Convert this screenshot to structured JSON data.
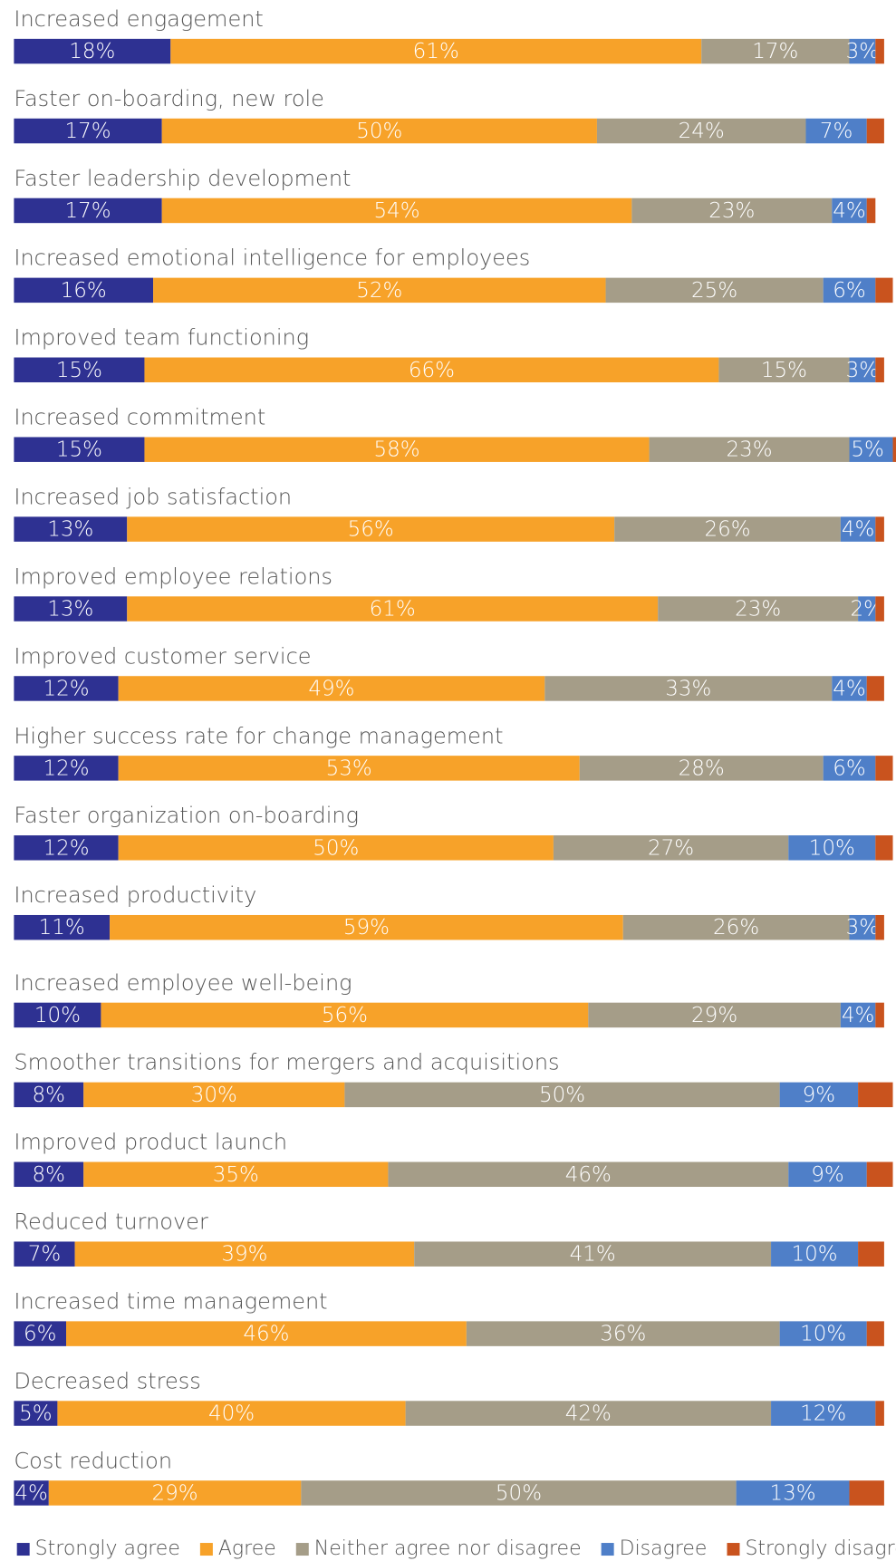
{
  "chart_data": {
    "type": "stacked_barh",
    "categories": [
      "Increased engagement",
      "Faster on-boarding, new role",
      "Faster leadership development",
      "Increased emotional intelligence for employees",
      "Improved team functioning",
      "Increased commitment",
      "Increased job satisfaction",
      "Improved employee relations",
      "Improved customer service",
      "Higher success rate for change management",
      "Faster organization on-boarding",
      "Increased productivity",
      "Increased employee well-being",
      "Smoother transitions for mergers and acquisitions",
      "Improved product launch",
      "Reduced turnover",
      "Increased time management",
      "Decreased stress",
      "Cost reduction"
    ],
    "series": [
      {
        "name": "Strongly agree",
        "color": "#2e3192",
        "values": [
          18,
          17,
          17,
          16,
          15,
          15,
          13,
          13,
          12,
          12,
          12,
          11,
          10,
          8,
          8,
          7,
          6,
          5,
          4
        ],
        "value_labels": [
          "18%",
          "17%",
          "17%",
          "16%",
          "15%",
          "15%",
          "13%",
          "13%",
          "12%",
          "12%",
          "12%",
          "11%",
          "10%",
          "8%",
          "8%",
          "7%",
          "6%",
          "5%",
          "4%"
        ]
      },
      {
        "name": "Agree",
        "color": "#f7a229",
        "values": [
          61,
          50,
          54,
          52,
          66,
          58,
          56,
          61,
          49,
          53,
          50,
          59,
          56,
          30,
          35,
          39,
          46,
          40,
          29
        ],
        "value_labels": [
          "61%",
          "50%",
          "54%",
          "52%",
          "66%",
          "58%",
          "56%",
          "61%",
          "49%",
          "53%",
          "50%",
          "59%",
          "56%",
          "30%",
          "35%",
          "39%",
          "46%",
          "40%",
          "29%"
        ]
      },
      {
        "name": "Neither agree nor disagree",
        "color": "#a59d88",
        "values": [
          17,
          24,
          23,
          25,
          15,
          23,
          26,
          23,
          33,
          28,
          27,
          26,
          29,
          50,
          46,
          41,
          36,
          42,
          50
        ],
        "value_labels": [
          "17%",
          "24%",
          "23%",
          "25%",
          "15%",
          "23%",
          "26%",
          "23%",
          "33%",
          "28%",
          "27%",
          "26%",
          "29%",
          "50%",
          "46%",
          "41%",
          "36%",
          "42%",
          "50%"
        ]
      },
      {
        "name": "Disagree",
        "color": "#4f7fc8",
        "values": [
          3,
          7,
          4,
          6,
          3,
          5,
          4,
          2,
          4,
          6,
          10,
          3,
          4,
          9,
          9,
          10,
          10,
          12,
          13
        ],
        "value_labels": [
          "3%",
          "7%",
          "4%",
          "6%",
          "3%",
          "5%",
          "4%",
          "2%",
          "4%",
          "6%",
          "10%",
          "3%",
          "4%",
          "9%",
          "9%",
          "10%",
          "10%",
          "12%",
          "13%"
        ]
      },
      {
        "name": "Strongly disagree",
        "color": "#c9531e",
        "values": [
          1,
          2,
          1,
          2,
          1,
          1,
          1,
          1,
          2,
          2,
          2,
          1,
          1,
          4,
          3,
          3,
          2,
          1,
          4
        ]
      }
    ],
    "xlim": [
      0,
      100
    ]
  }
}
